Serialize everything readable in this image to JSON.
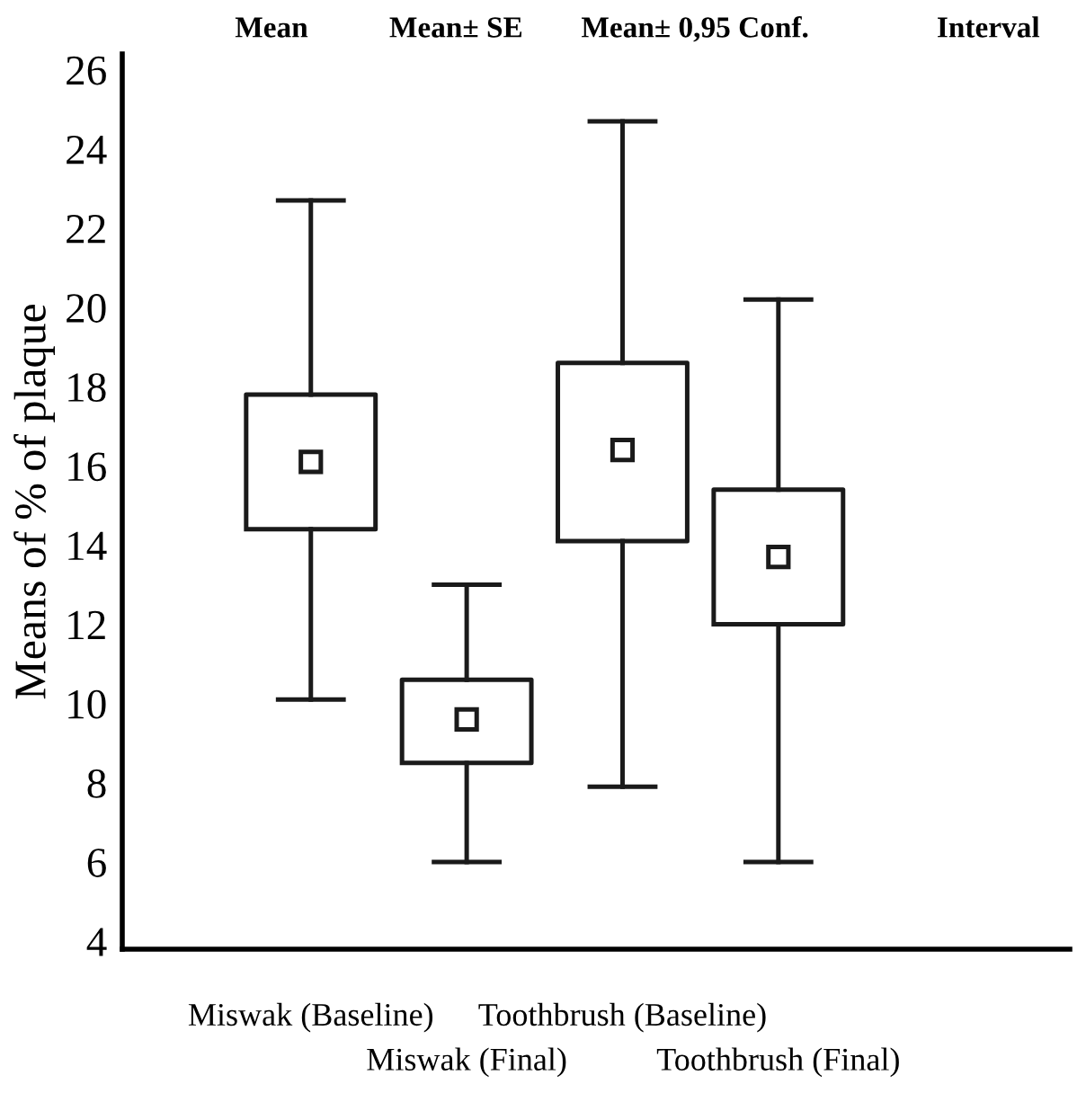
{
  "chart_data": {
    "type": "box",
    "ylabel": "Means of % of plaque",
    "categories": [
      "Miswak (Baseline)",
      "Miswak (Final)",
      "Toothbrush (Baseline)",
      "Toothbrush (Final)"
    ],
    "boxes": [
      {
        "low": 10.1,
        "q1": 14.4,
        "median": 16.1,
        "q3": 17.8,
        "high": 22.7
      },
      {
        "low": 6.0,
        "q1": 8.5,
        "median": 9.6,
        "q3": 10.6,
        "high": 13.0
      },
      {
        "low": 7.9,
        "q1": 14.1,
        "median": 16.4,
        "q3": 18.6,
        "high": 24.7
      },
      {
        "low": 6.0,
        "q1": 12.0,
        "median": 13.7,
        "q3": 15.4,
        "high": 20.2
      }
    ],
    "color": "#1a1a1a",
    "marker": "square",
    "ylim": [
      3.8,
      26.4
    ],
    "yticks": [
      4,
      6,
      8,
      10,
      12,
      14,
      16,
      18,
      20,
      22,
      24,
      26
    ],
    "grid": false,
    "legend": false,
    "annotations": [
      "Mean",
      "Mean± SE",
      "Mean± 0,95 Conf.",
      "Interval"
    ]
  }
}
